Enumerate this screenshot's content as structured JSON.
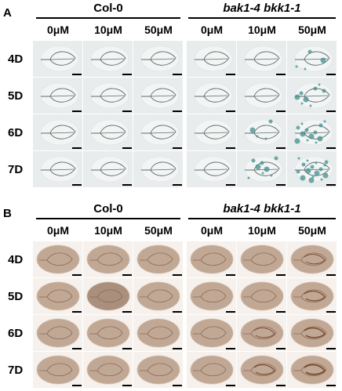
{
  "panels": [
    {
      "letter": "A",
      "stain": "gus",
      "group1": "Col-0",
      "group2": "bak1-4 bkk1-1",
      "concentrations": [
        "0μM",
        "10μM",
        "50μM",
        "0μM",
        "10μM",
        "50μM"
      ],
      "days": [
        "4D",
        "5D",
        "6D",
        "7D"
      ]
    },
    {
      "letter": "B",
      "stain": "dab",
      "group1": "Col-0",
      "group2": "bak1-4 bkk1-1",
      "concentrations": [
        "0μM",
        "10μM",
        "50μM",
        "0μM",
        "10μM",
        "50μM"
      ],
      "days": [
        "4D",
        "5D",
        "6D",
        "7D"
      ]
    }
  ],
  "colors": {
    "gus_background": "#e9ecec",
    "gus_vein": "#5a6a6a",
    "gus_blue": "#3f8f8c",
    "dab_background": "#f6f1ec",
    "dab_leaf": "#b79b86",
    "dab_vein": "#8a6a55"
  }
}
